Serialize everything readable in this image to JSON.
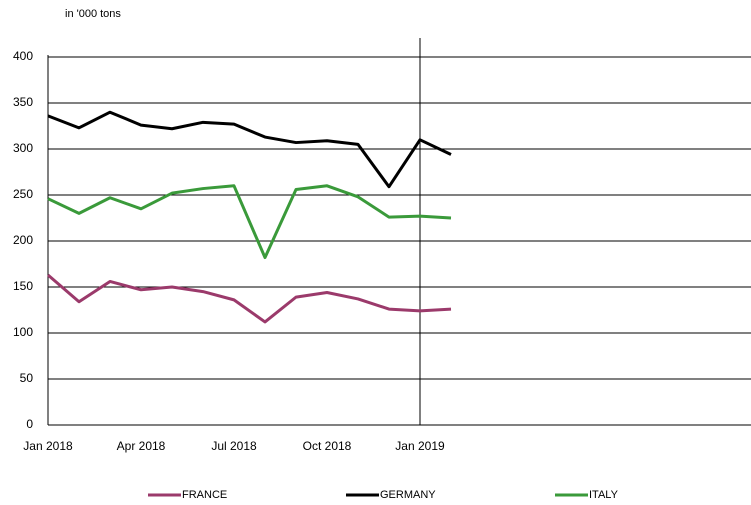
{
  "chart_data": {
    "type": "line",
    "unit_label": "in '000 tons",
    "categories": [
      "Jan 2018",
      null,
      null,
      "Apr 2018",
      null,
      null,
      "Jul 2018",
      null,
      null,
      "Oct 2018",
      null,
      null,
      "Jan 2019",
      null,
      null,
      null,
      null,
      null,
      null,
      null,
      null,
      null,
      null
    ],
    "series": [
      {
        "name": "FRANCE",
        "color": "#9b3a6b",
        "values": [
          163,
          134,
          156,
          147,
          150,
          145,
          136,
          112,
          139,
          144,
          137,
          126,
          124,
          126,
          null,
          null,
          null,
          null,
          null,
          null,
          null,
          null,
          null
        ]
      },
      {
        "name": "GERMANY",
        "color": "#000000",
        "values": [
          336,
          323,
          340,
          326,
          322,
          329,
          327,
          313,
          307,
          309,
          305,
          259,
          310,
          294,
          null,
          null,
          null,
          null,
          null,
          null,
          null,
          null,
          null
        ]
      },
      {
        "name": "ITALY",
        "color": "#3a9a3a",
        "values": [
          246,
          230,
          247,
          235,
          252,
          257,
          260,
          182,
          256,
          260,
          248,
          226,
          227,
          225,
          null,
          null,
          null,
          null,
          null,
          null,
          null,
          null,
          null
        ]
      }
    ],
    "ylim": [
      0,
      400
    ],
    "yticks": [
      0,
      50,
      100,
      150,
      200,
      250,
      300,
      350,
      400
    ],
    "grid": true,
    "legend": "bottom"
  }
}
